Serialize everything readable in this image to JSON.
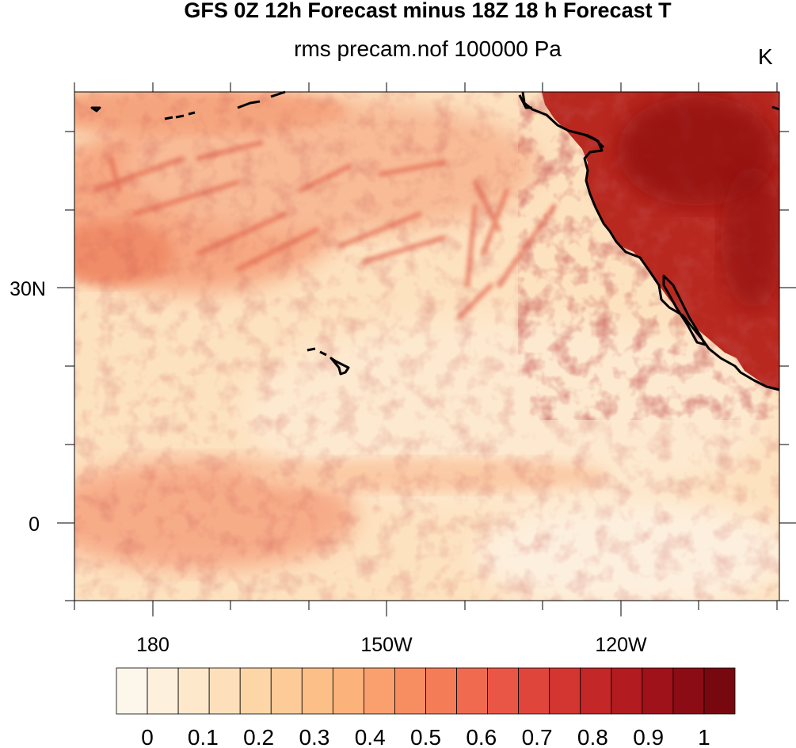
{
  "title": "GFS 0Z 12h Forecast minus 18Z 18 h Forecast T",
  "subtitle": "rms precam.nof 100000 Pa",
  "units": "K",
  "lat_labels": [
    "30N",
    "0"
  ],
  "lon_labels": [
    "180",
    "150W",
    "120W"
  ],
  "colorbar": {
    "labels": [
      "0",
      "0.1",
      "0.2",
      "0.3",
      "0.4",
      "0.5",
      "0.6",
      "0.7",
      "0.8",
      "0.9",
      "1"
    ],
    "colors": [
      "#fdf6ea",
      "#fdf0dc",
      "#fde8cc",
      "#fde0bb",
      "#fdd6a8",
      "#fccb97",
      "#fcbf88",
      "#fbb27b",
      "#f9a06e",
      "#f78e61",
      "#f47d58",
      "#f06a50",
      "#ea5646",
      "#e0453c",
      "#d33531",
      "#c32727",
      "#b21b20",
      "#a0121a",
      "#8c0c15",
      "#780810"
    ]
  },
  "map": {
    "lat_range": [
      -10,
      55
    ],
    "lon_range": [
      170,
      260
    ],
    "land_color": "#b01e1e",
    "ocean_base_color": "#fde2c0"
  }
}
